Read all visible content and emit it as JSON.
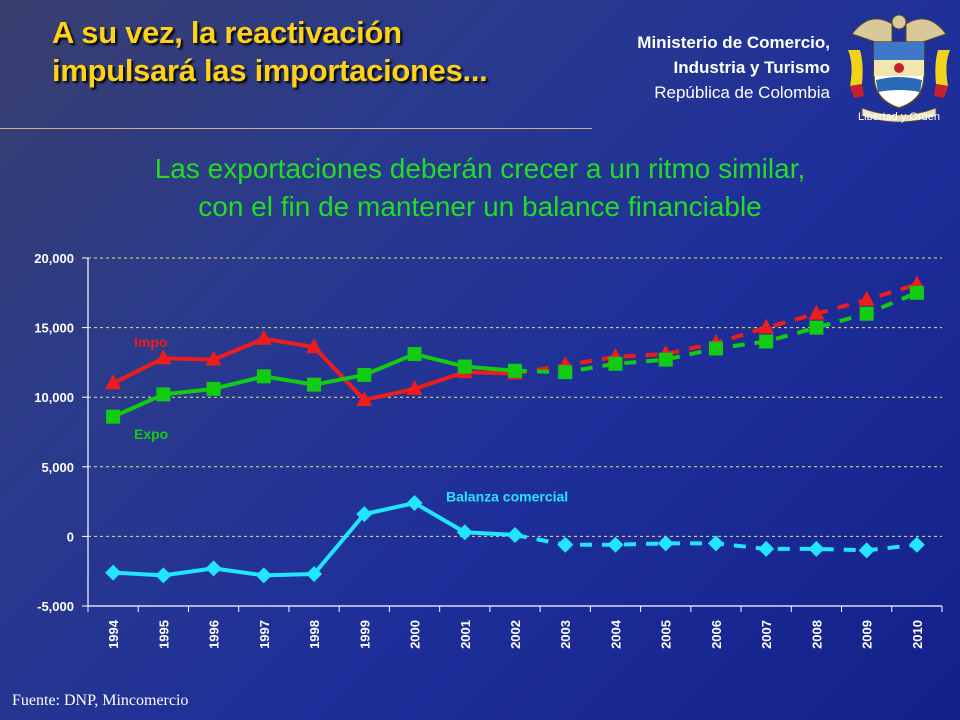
{
  "header": {
    "title_line1": "A su vez, la reactivación",
    "title_line2": "impulsará las importaciones...",
    "ministry_line1": "Ministerio de Comercio,",
    "ministry_line2": "Industria y Turismo",
    "ministry_line3": "República de Colombia",
    "motto": "Libertad y Orden"
  },
  "subtitle_line1": "Las exportaciones deberán crecer a un ritmo similar,",
  "subtitle_line2": "con el fin de mantener un balance financiable",
  "source": "Fuente: DNP, Mincomercio",
  "colors": {
    "title": "#ffd21a",
    "subtitle": "#22dd22",
    "impo": "#ee1c1c",
    "expo": "#11cc11",
    "balanza": "#22e5ff",
    "grid": "#e6e66a"
  },
  "chart_data": {
    "type": "line",
    "x": [
      "1994",
      "1995",
      "1996",
      "1997",
      "1998",
      "1999",
      "2000",
      "2001",
      "2002",
      "2003",
      "2004",
      "2005",
      "2006",
      "2007",
      "2008",
      "2009",
      "2010"
    ],
    "ylim": [
      -5000,
      20000
    ],
    "yticks": [
      -5000,
      0,
      5000,
      10000,
      15000,
      20000
    ],
    "ytick_labels": [
      "-5,000",
      "0",
      "5,000",
      "10,000",
      "15,000",
      "20,000"
    ],
    "grid": true,
    "projection_start_index": 8,
    "series": [
      {
        "name": "Impo",
        "marker": "triangle",
        "values": [
          11000,
          12800,
          12700,
          14200,
          13600,
          9800,
          10600,
          11800,
          11700,
          12300,
          12900,
          13100,
          13900,
          15000,
          16000,
          17000,
          18100
        ]
      },
      {
        "name": "Expo",
        "marker": "square",
        "values": [
          8600,
          10200,
          10600,
          11500,
          10900,
          11600,
          13100,
          12200,
          11900,
          11800,
          12400,
          12700,
          13500,
          14000,
          15000,
          16000,
          17500
        ]
      },
      {
        "name": "Balanza comercial",
        "marker": "diamond",
        "values": [
          -2600,
          -2800,
          -2300,
          -2800,
          -2700,
          1600,
          2400,
          300,
          100,
          -600,
          -600,
          -500,
          -500,
          -900,
          -900,
          -1000,
          -600
        ]
      }
    ]
  }
}
